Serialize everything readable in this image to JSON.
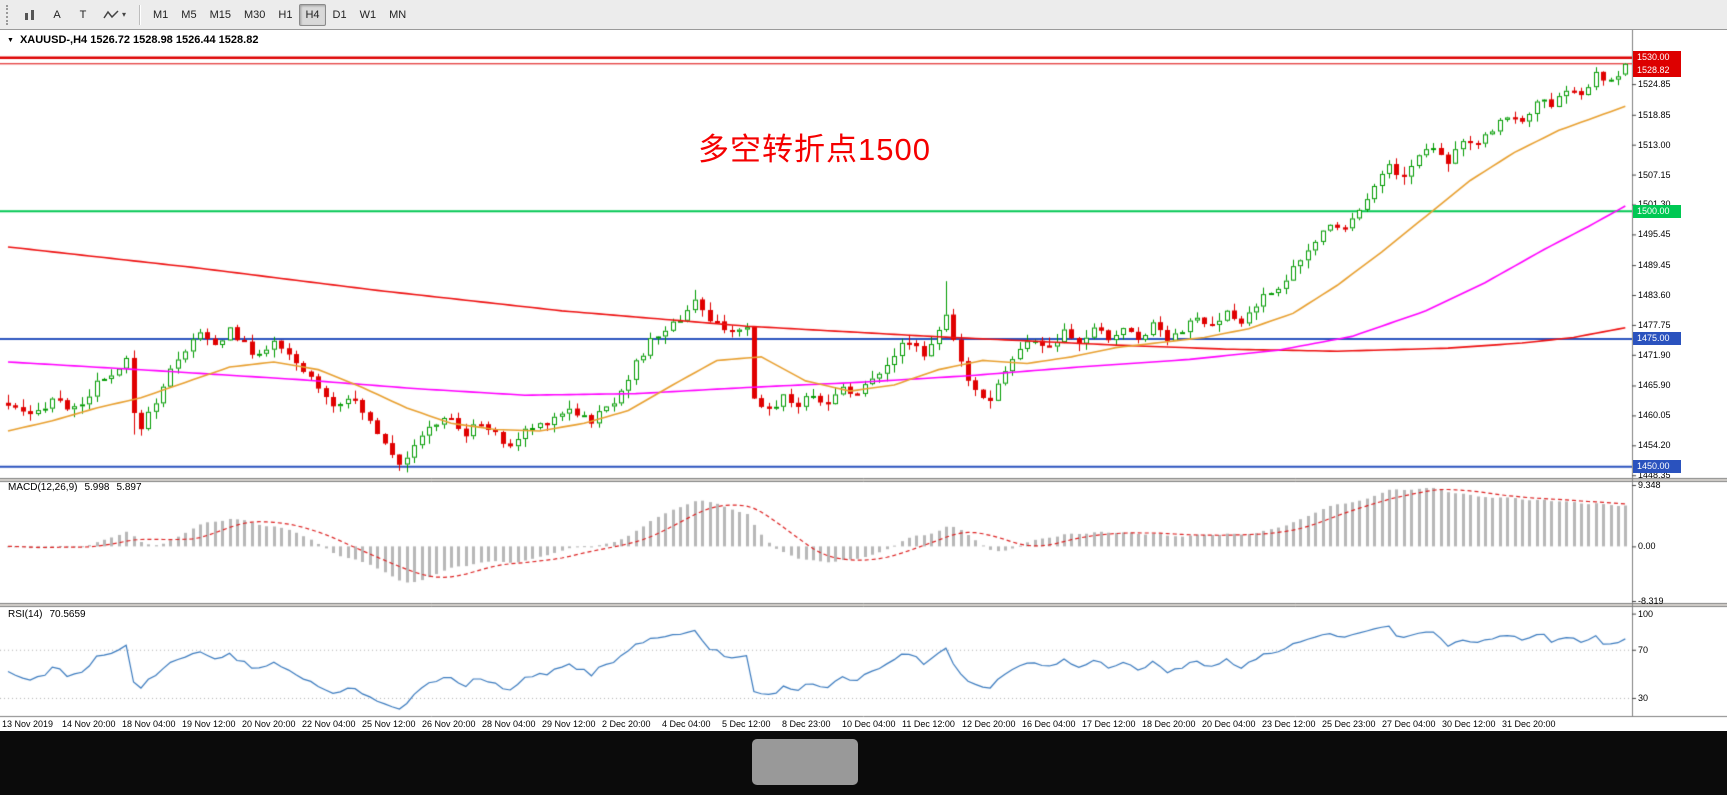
{
  "toolbar": {
    "text_tool_label": "A",
    "frame_tool_label": "T",
    "caret": "▾",
    "timeframes": [
      "M1",
      "M5",
      "M15",
      "M30",
      "H1",
      "H4",
      "D1",
      "W1",
      "MN"
    ],
    "active_timeframe": "H4"
  },
  "chart": {
    "collapse_triangle": "▼",
    "title": "XAUUSD-,H4  1526.72 1528.98 1526.44 1528.82",
    "annotation_text": "多空转折点1500",
    "annotation_color": "#f50000",
    "price_axis_labels": [
      "1524.85",
      "1518.85",
      "1513.00",
      "1507.15",
      "1501.30",
      "1495.45",
      "1489.45",
      "1483.60",
      "1477.75",
      "1471.90",
      "1465.90",
      "1460.05",
      "1454.20",
      "1448.35"
    ]
  },
  "chart_data": {
    "type": "candlestick",
    "symbol": "XAUUSD-",
    "timeframe": "H4",
    "current_bar_ohlc": {
      "open": 1526.72,
      "high": 1528.98,
      "low": 1526.44,
      "close": 1528.82
    },
    "y_axis_range": [
      1448.0,
      1532.3
    ],
    "bars": 220,
    "up_color": "#009b00",
    "down_color": "#e00000",
    "x_labels": [
      "13 Nov 2019",
      "14 Nov 20:00",
      "18 Nov 04:00",
      "19 Nov 12:00",
      "20 Nov 20:00",
      "22 Nov 04:00",
      "25 Nov 12:00",
      "26 Nov 20:00",
      "28 Nov 04:00",
      "29 Nov 12:00",
      "2 Dec 20:00",
      "4 Dec 04:00",
      "5 Dec 12:00",
      "8 Dec 23:00",
      "10 Dec 04:00",
      "11 Dec 12:00",
      "12 Dec 20:00",
      "16 Dec 04:00",
      "17 Dec 12:00",
      "18 Dec 20:00",
      "20 Dec 04:00",
      "23 Dec 12:00",
      "25 Dec 23:00",
      "27 Dec 04:00",
      "30 Dec 12:00",
      "31 Dec 20:00"
    ],
    "close_waypoints": [
      [
        0,
        1462
      ],
      [
        3,
        1459.5
      ],
      [
        6,
        1463.5
      ],
      [
        9,
        1461
      ],
      [
        12,
        1466
      ],
      [
        15,
        1468.5
      ],
      [
        16,
        1471
      ],
      [
        17,
        1460
      ],
      [
        18,
        1458
      ],
      [
        20,
        1463
      ],
      [
        23,
        1471.5
      ],
      [
        26,
        1476
      ],
      [
        28,
        1473.5
      ],
      [
        30,
        1477
      ],
      [
        33,
        1472
      ],
      [
        36,
        1474
      ],
      [
        39,
        1470
      ],
      [
        42,
        1466
      ],
      [
        44,
        1462
      ],
      [
        46,
        1464
      ],
      [
        49,
        1459
      ],
      [
        51,
        1455
      ],
      [
        53,
        1451
      ],
      [
        55,
        1453.5
      ],
      [
        57,
        1458
      ],
      [
        60,
        1459.5
      ],
      [
        62,
        1456
      ],
      [
        64,
        1459
      ],
      [
        66,
        1456
      ],
      [
        68,
        1454
      ],
      [
        70,
        1457
      ],
      [
        73,
        1459
      ],
      [
        76,
        1461.5
      ],
      [
        79,
        1459
      ],
      [
        82,
        1463
      ],
      [
        85,
        1470
      ],
      [
        87,
        1474.5
      ],
      [
        89,
        1477
      ],
      [
        91,
        1479
      ],
      [
        93,
        1483
      ],
      [
        95,
        1478
      ],
      [
        97,
        1477.5
      ],
      [
        99,
        1476
      ],
      [
        100,
        1476.5
      ],
      [
        101,
        1463
      ],
      [
        103,
        1461
      ],
      [
        105,
        1464
      ],
      [
        107,
        1462
      ],
      [
        109,
        1464.5
      ],
      [
        111,
        1462
      ],
      [
        113,
        1466
      ],
      [
        115,
        1464
      ],
      [
        118,
        1469
      ],
      [
        120,
        1472
      ],
      [
        122,
        1475
      ],
      [
        124,
        1472
      ],
      [
        126,
        1477
      ],
      [
        127,
        1479
      ],
      [
        129,
        1470
      ],
      [
        131,
        1465
      ],
      [
        133,
        1463.5
      ],
      [
        135,
        1469
      ],
      [
        137,
        1473
      ],
      [
        139,
        1475
      ],
      [
        141,
        1473
      ],
      [
        143,
        1476
      ],
      [
        145,
        1474
      ],
      [
        147,
        1477
      ],
      [
        149,
        1475
      ],
      [
        151,
        1477
      ],
      [
        153,
        1475
      ],
      [
        155,
        1478
      ],
      [
        157,
        1475.5
      ],
      [
        159,
        1477
      ],
      [
        161,
        1479
      ],
      [
        163,
        1477
      ],
      [
        165,
        1480
      ],
      [
        167,
        1478
      ],
      [
        169,
        1482
      ],
      [
        171,
        1484
      ],
      [
        173,
        1487
      ],
      [
        175,
        1490
      ],
      [
        177,
        1494
      ],
      [
        179,
        1498
      ],
      [
        181,
        1496.5
      ],
      [
        183,
        1501
      ],
      [
        185,
        1505
      ],
      [
        187,
        1509
      ],
      [
        189,
        1506.5
      ],
      [
        191,
        1511
      ],
      [
        193,
        1513
      ],
      [
        195,
        1510
      ],
      [
        197,
        1514
      ],
      [
        199,
        1512.5
      ],
      [
        201,
        1516
      ],
      [
        203,
        1519
      ],
      [
        205,
        1517
      ],
      [
        207,
        1522
      ],
      [
        209,
        1520
      ],
      [
        211,
        1524
      ],
      [
        213,
        1522.5
      ],
      [
        215,
        1526.5
      ],
      [
        217,
        1525
      ],
      [
        219,
        1528.82
      ]
    ],
    "wick_overrides": [
      [
        17,
        "l",
        1456.3
      ],
      [
        53,
        "l",
        1449.2
      ],
      [
        93,
        "h",
        1484.6
      ],
      [
        127,
        "h",
        1486.3
      ]
    ],
    "horizontal_lines": [
      {
        "price": 1530.0,
        "label": "1530.00",
        "color": "#dd0000",
        "width": 2.5
      },
      {
        "price": 1528.82,
        "label": "1528.82",
        "color": "#dd0000",
        "width": 1
      },
      {
        "price": 1500.0,
        "label": "1500.00",
        "color": "#00c853",
        "width": 2
      },
      {
        "price": 1475.0,
        "label": "1475.00",
        "color": "#2a52be",
        "width": 2
      },
      {
        "price": 1450.0,
        "label": "1450.00",
        "color": "#2a52be",
        "width": 2
      }
    ],
    "moving_averages": [
      {
        "name": "slow-ma-red",
        "color": "#ee1111",
        "width": 1.6,
        "points": [
          [
            0,
            1493
          ],
          [
            25,
            1489
          ],
          [
            50,
            1484.5
          ],
          [
            75,
            1480.5
          ],
          [
            100,
            1477.5
          ],
          [
            125,
            1475.5
          ],
          [
            150,
            1473.8
          ],
          [
            165,
            1473.0
          ],
          [
            180,
            1472.6
          ],
          [
            195,
            1473.2
          ],
          [
            205,
            1474.2
          ],
          [
            212,
            1475.3
          ],
          [
            219,
            1477.2
          ]
        ]
      },
      {
        "name": "mid-ma-magenta",
        "color": "#ff00ff",
        "width": 1.6,
        "points": [
          [
            0,
            1470.5
          ],
          [
            20,
            1468.8
          ],
          [
            40,
            1467
          ],
          [
            55,
            1465.3
          ],
          [
            70,
            1464
          ],
          [
            85,
            1464.3
          ],
          [
            100,
            1465.5
          ],
          [
            115,
            1466.5
          ],
          [
            130,
            1467.8
          ],
          [
            145,
            1469.5
          ],
          [
            160,
            1471
          ],
          [
            172,
            1472.8
          ],
          [
            182,
            1475.5
          ],
          [
            192,
            1480.5
          ],
          [
            200,
            1486
          ],
          [
            208,
            1492.5
          ],
          [
            214,
            1497
          ],
          [
            219,
            1501
          ]
        ]
      },
      {
        "name": "fast-ma-orange",
        "color": "#e8a030",
        "width": 1.6,
        "points": [
          [
            0,
            1457
          ],
          [
            6,
            1459
          ],
          [
            12,
            1461.5
          ],
          [
            18,
            1463.5
          ],
          [
            24,
            1466.5
          ],
          [
            30,
            1469.5
          ],
          [
            36,
            1470.5
          ],
          [
            42,
            1469
          ],
          [
            48,
            1465.5
          ],
          [
            54,
            1461.5
          ],
          [
            60,
            1458.5
          ],
          [
            66,
            1457.3
          ],
          [
            72,
            1457
          ],
          [
            78,
            1458.5
          ],
          [
            84,
            1461
          ],
          [
            90,
            1466
          ],
          [
            96,
            1470.8
          ],
          [
            102,
            1471.5
          ],
          [
            108,
            1466.8
          ],
          [
            114,
            1464.8
          ],
          [
            120,
            1466
          ],
          [
            126,
            1469
          ],
          [
            132,
            1470.8
          ],
          [
            138,
            1470.2
          ],
          [
            144,
            1471.5
          ],
          [
            150,
            1473.3
          ],
          [
            156,
            1474.3
          ],
          [
            162,
            1475.3
          ],
          [
            168,
            1477
          ],
          [
            174,
            1480
          ],
          [
            180,
            1485.5
          ],
          [
            186,
            1492
          ],
          [
            192,
            1499
          ],
          [
            198,
            1506
          ],
          [
            204,
            1511.5
          ],
          [
            210,
            1515.8
          ],
          [
            219,
            1520.5
          ]
        ]
      }
    ],
    "indicators": {
      "macd": {
        "label": "MACD(12,26,9)",
        "value_main": "5.998",
        "value_signal": "5.897",
        "scale_labels": [
          "9.348",
          "0.00",
          "-8.319"
        ],
        "histogram_color": "#b8b8b8",
        "signal_color": "#dd2222"
      },
      "rsi": {
        "label": "RSI(14)",
        "value": "70.5659",
        "scale_labels": [
          "100",
          "70",
          "30"
        ],
        "levels": [
          70,
          30
        ],
        "line_color": "#3b7bbf"
      }
    }
  }
}
